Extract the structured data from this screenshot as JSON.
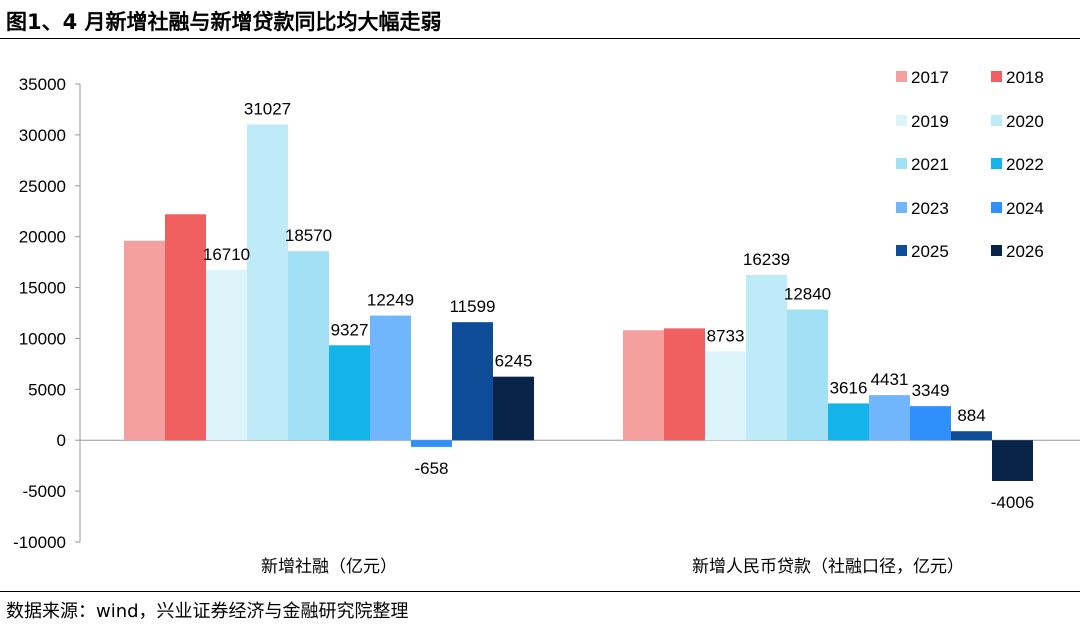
{
  "title": "图1、4 月新增社融与新增贷款同比均大幅走弱",
  "source": "数据来源：wind，兴业证券经济与金融研究院整理",
  "chart_data": {
    "type": "bar",
    "categories": [
      "新增社融（亿元）",
      "新增人民币贷款（社融口径，亿元）"
    ],
    "ylim": [
      -10000,
      35000
    ],
    "yticks": [
      -10000,
      -5000,
      0,
      5000,
      10000,
      15000,
      20000,
      25000,
      30000,
      35000
    ],
    "grid": false,
    "legend_position": "top-right",
    "series": [
      {
        "name": "2017",
        "color": "#f4a09e",
        "values": [
          19600,
          10800
        ],
        "labels": [
          null,
          null
        ]
      },
      {
        "name": "2018",
        "color": "#ef5f5f",
        "values": [
          22200,
          10990
        ],
        "labels": [
          null,
          null
        ]
      },
      {
        "name": "2019",
        "color": "#ddf3fa",
        "values": [
          16710,
          8733
        ],
        "labels": [
          "16710",
          "8733"
        ]
      },
      {
        "name": "2020",
        "color": "#bfeaf7",
        "values": [
          31027,
          16239
        ],
        "labels": [
          "31027",
          "16239"
        ]
      },
      {
        "name": "2021",
        "color": "#a1e0f5",
        "values": [
          18570,
          12840
        ],
        "labels": [
          "18570",
          "12840"
        ]
      },
      {
        "name": "2022",
        "color": "#14b4ea",
        "values": [
          9327,
          3616
        ],
        "labels": [
          "9327",
          "3616"
        ]
      },
      {
        "name": "2023",
        "color": "#71b5fd",
        "values": [
          12249,
          4431
        ],
        "labels": [
          "12249",
          "4431"
        ]
      },
      {
        "name": "2024",
        "color": "#2f90fb",
        "values": [
          -658,
          3349
        ],
        "labels": [
          "-658",
          "3349"
        ]
      },
      {
        "name": "2025",
        "color": "#0e4c97",
        "values": [
          11599,
          884
        ],
        "labels": [
          "11599",
          "884"
        ]
      },
      {
        "name": "2026",
        "color": "#082448",
        "values": [
          6245,
          -4006
        ],
        "labels": [
          "6245",
          "-4006"
        ]
      }
    ]
  }
}
